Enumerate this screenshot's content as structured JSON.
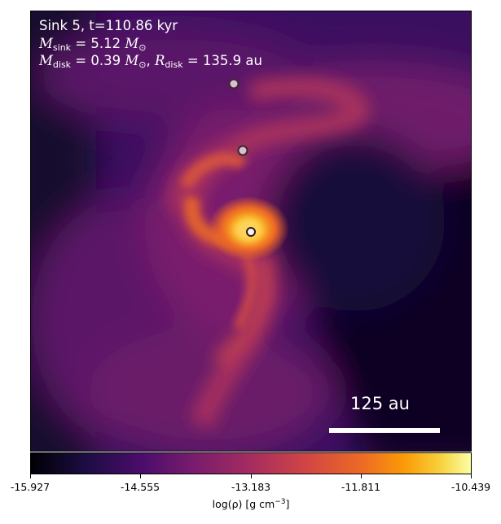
{
  "panel": {
    "title": "Sink 5, t=110.86 kyr",
    "m_sink_symbol": "M",
    "m_sink_sub": "sink",
    "m_sink_value": "= 5.12",
    "m_disk_symbol": "M",
    "m_disk_sub": "disk",
    "m_disk_value": "= 0.39",
    "r_disk_symbol": "R",
    "r_disk_sub": "disk",
    "r_disk_value": "= 135.9 au",
    "msun": "M",
    "msun_sub": "⊙",
    "scale_label": "125 au"
  },
  "colorbar": {
    "ticks": [
      "-15.927",
      "-14.555",
      "-13.183",
      "-11.811",
      "-10.439"
    ],
    "label_main": "log(ρ) [g cm",
    "label_exp": "−3",
    "label_end": "]",
    "colormap": "inferno"
  }
}
